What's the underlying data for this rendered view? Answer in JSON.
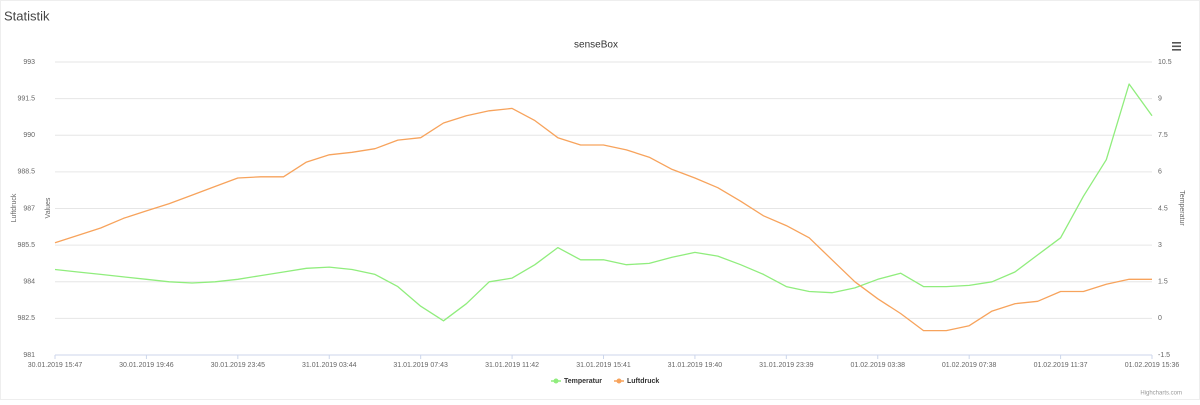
{
  "header": {
    "title": "Statistik"
  },
  "chart_data": {
    "type": "line",
    "title": "senseBox",
    "categories": [
      "30.01.2019 15:47",
      null,
      null,
      null,
      "30.01.2019 19:46",
      null,
      null,
      null,
      "30.01.2019 23:45",
      null,
      null,
      null,
      "31.01.2019 03:44",
      null,
      null,
      null,
      "31.01.2019 07:43",
      null,
      null,
      null,
      "31.01.2019 11:42",
      null,
      null,
      null,
      "31.01.2019 15:41",
      null,
      null,
      null,
      "31.01.2019 19:40",
      null,
      null,
      null,
      "31.01.2019 23:39",
      null,
      null,
      null,
      "01.02.2019 03:38",
      null,
      null,
      null,
      "01.02.2019 07:38",
      null,
      null,
      null,
      "01.02.2019 11:37",
      null,
      null,
      null,
      "01.02.2019 15:36"
    ],
    "series": [
      {
        "name": "Temperatur",
        "color": "#90ed7d",
        "axis": "y2",
        "values": [
          2.0,
          1.9,
          1.8,
          1.7,
          1.6,
          1.5,
          1.45,
          1.5,
          1.6,
          1.75,
          1.9,
          2.05,
          2.1,
          2.0,
          1.8,
          1.3,
          0.5,
          -0.1,
          0.6,
          1.5,
          1.65,
          2.2,
          2.9,
          2.4,
          2.4,
          2.2,
          2.25,
          2.5,
          2.7,
          2.55,
          2.2,
          1.8,
          1.3,
          1.1,
          1.05,
          1.25,
          1.6,
          1.85,
          1.3,
          1.3,
          1.35,
          1.5,
          1.9,
          2.6,
          3.3,
          5.0,
          6.5,
          9.6,
          8.3
        ]
      },
      {
        "name": "Luftdruck",
        "color": "#f7a35c",
        "values": [
          985.6,
          985.9,
          986.2,
          986.6,
          986.9,
          987.2,
          987.55,
          987.9,
          988.25,
          988.3,
          988.3,
          988.9,
          989.2,
          989.3,
          989.45,
          989.8,
          989.9,
          990.5,
          990.8,
          991.0,
          991.1,
          990.6,
          989.9,
          989.6,
          989.6,
          989.4,
          989.1,
          988.6,
          988.25,
          987.85,
          987.3,
          986.7,
          986.3,
          985.8,
          984.9,
          984.0,
          983.3,
          982.7,
          982.0,
          982.0,
          982.2,
          982.8,
          983.1,
          983.2,
          983.6,
          983.6,
          983.9,
          984.1,
          984.1
        ]
      }
    ],
    "ylim": [
      981,
      993
    ],
    "yticks": [
      981,
      982.5,
      984,
      985.5,
      987,
      988.5,
      990,
      991.5,
      993
    ],
    "y2lim": [
      -1.5,
      10.5
    ],
    "y2ticks": [
      -1.5,
      0,
      1.5,
      3,
      4.5,
      6,
      7.5,
      9,
      10.5
    ],
    "ylabel": "Luftdruck",
    "ylabel_inner": "Values",
    "y2label": "Temperatur",
    "grid": true,
    "legend": "bottom",
    "credits": "Highcharts.com"
  }
}
